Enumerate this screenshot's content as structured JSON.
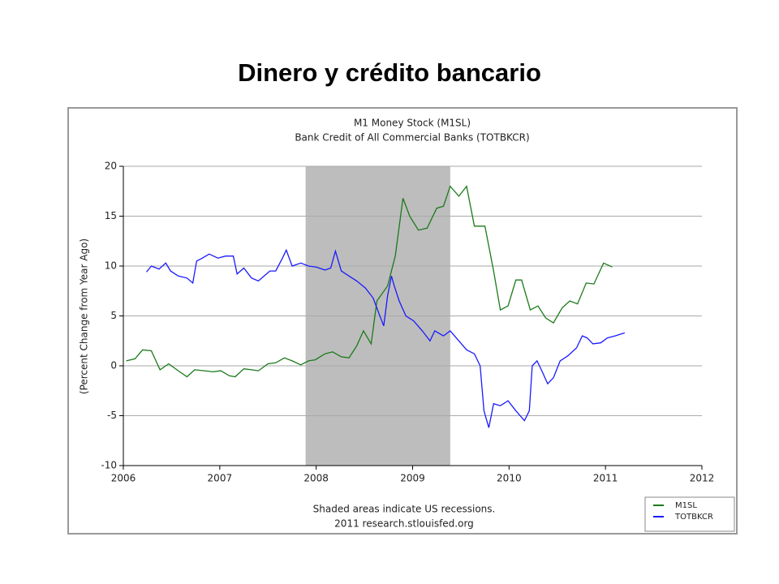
{
  "slide_title": "Dinero y crédito bancario",
  "chart_data": {
    "type": "line",
    "title": "M1 Money Stock (M1SL)",
    "subtitle": "Bank Credit of All Commercial Banks (TOTBKCR)",
    "y_label": "(Percent Change from Year Ago)",
    "note": "Shaded areas indicate US recessions.",
    "source": "2011 research.stlouisfed.org",
    "xlim": [
      2006,
      2012
    ],
    "xticks": [
      2006,
      2007,
      2008,
      2009,
      2010,
      2011,
      2012
    ],
    "ylim": [
      -10,
      20
    ],
    "yticks": [
      -10,
      -5,
      0,
      5,
      10,
      15,
      20
    ],
    "grid": true,
    "legend": "bottom-right",
    "recessions": [
      {
        "start": 2007.89,
        "end": 2009.39,
        "color": "#bdbdbd"
      }
    ],
    "series": [
      {
        "name": "M1SL",
        "color": "#1a7a1a",
        "x": [
          2006.03,
          2006.12,
          2006.2,
          2006.29,
          2006.38,
          2006.47,
          2006.57,
          2006.66,
          2006.74,
          2006.84,
          2006.93,
          2007.01,
          2007.1,
          2007.16,
          2007.25,
          2007.33,
          2007.4,
          2007.5,
          2007.58,
          2007.67,
          2007.75,
          2007.84,
          2007.92,
          2007.99,
          2008.09,
          2008.17,
          2008.26,
          2008.34,
          2008.42,
          2008.49,
          2008.57,
          2008.63,
          2008.74,
          2008.82,
          2008.9,
          2008.97,
          2009.06,
          2009.15,
          2009.25,
          2009.32,
          2009.39,
          2009.48,
          2009.56,
          2009.64,
          2009.75,
          2009.84,
          2009.91,
          2009.99,
          2010.07,
          2010.13,
          2010.22,
          2010.3,
          2010.38,
          2010.46,
          2010.55,
          2010.63,
          2010.71,
          2010.8,
          2010.88,
          2010.98,
          2011.07
        ],
        "values": [
          0.5,
          0.7,
          1.6,
          1.5,
          -0.4,
          0.2,
          -0.5,
          -1.1,
          -0.4,
          -0.5,
          -0.6,
          -0.5,
          -1.0,
          -1.1,
          -0.3,
          -0.4,
          -0.5,
          0.2,
          0.3,
          0.8,
          0.5,
          0.1,
          0.5,
          0.6,
          1.2,
          1.4,
          0.9,
          0.8,
          2.0,
          3.5,
          2.2,
          6.5,
          8.0,
          11.0,
          16.8,
          15.0,
          13.6,
          13.8,
          15.8,
          16.0,
          18.0,
          17.0,
          18.0,
          14.0,
          14.0,
          9.5,
          5.6,
          6.0,
          8.6,
          8.6,
          5.6,
          6.0,
          4.8,
          4.3,
          5.8,
          6.5,
          6.2,
          8.3,
          8.2,
          10.3,
          9.9
        ]
      },
      {
        "name": "TOTBKCR",
        "color": "#1a1aff",
        "x": [
          2006.24,
          2006.29,
          2006.37,
          2006.44,
          2006.49,
          2006.57,
          2006.66,
          2006.72,
          2006.76,
          2006.82,
          2006.89,
          2006.98,
          2007.06,
          2007.14,
          2007.18,
          2007.25,
          2007.33,
          2007.4,
          2007.46,
          2007.52,
          2007.58,
          2007.65,
          2007.69,
          2007.75,
          2007.84,
          2007.92,
          2008.0,
          2008.09,
          2008.15,
          2008.2,
          2008.26,
          2008.34,
          2008.42,
          2008.51,
          2008.59,
          2008.66,
          2008.7,
          2008.74,
          2008.78,
          2008.81,
          2008.86,
          2008.93,
          2009.01,
          2009.1,
          2009.18,
          2009.23,
          2009.32,
          2009.39,
          2009.48,
          2009.56,
          2009.64,
          2009.7,
          2009.74,
          2009.79,
          2009.84,
          2009.91,
          2009.99,
          2010.07,
          2010.16,
          2010.21,
          2010.24,
          2010.29,
          2010.34,
          2010.4,
          2010.46,
          2010.53,
          2010.61,
          2010.7,
          2010.76,
          2010.81,
          2010.87,
          2010.95,
          2011.02,
          2011.1,
          2011.2
        ],
        "values": [
          9.4,
          10.0,
          9.7,
          10.3,
          9.5,
          9.0,
          8.8,
          8.3,
          10.5,
          10.8,
          11.2,
          10.8,
          11.0,
          11.0,
          9.2,
          9.8,
          8.8,
          8.5,
          9.0,
          9.5,
          9.5,
          10.8,
          11.6,
          10.0,
          10.3,
          10.0,
          9.9,
          9.6,
          9.8,
          11.5,
          9.5,
          9.0,
          8.5,
          7.8,
          6.8,
          5.0,
          4.0,
          7.0,
          9.0,
          8.0,
          6.5,
          5.0,
          4.5,
          3.5,
          2.5,
          3.5,
          3.0,
          3.5,
          2.5,
          1.6,
          1.2,
          0.0,
          -4.5,
          -6.2,
          -3.8,
          -4.0,
          -3.5,
          -4.5,
          -5.5,
          -4.5,
          0.0,
          0.5,
          -0.5,
          -1.8,
          -1.2,
          0.5,
          1.0,
          1.8,
          3.0,
          2.8,
          2.2,
          2.3,
          2.8,
          3.0,
          3.3
        ]
      }
    ]
  }
}
